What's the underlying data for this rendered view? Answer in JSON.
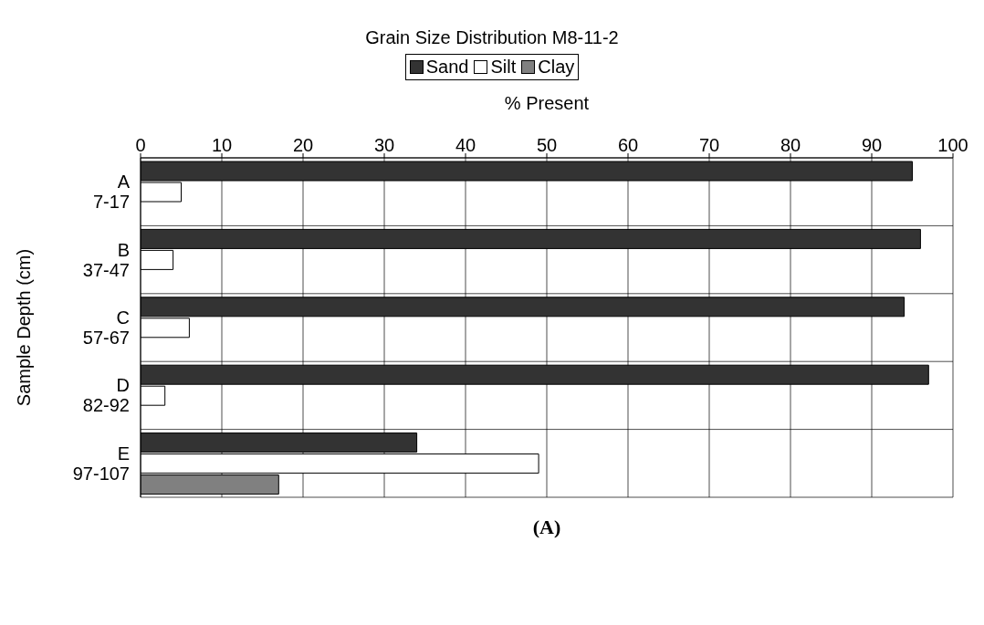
{
  "chart_data": {
    "type": "bar",
    "orientation": "horizontal",
    "title": "Grain Size Distribution M8-11-2",
    "xlabel": "% Present",
    "ylabel": "Sample Depth (cm)",
    "categories": [
      "A\n7-17",
      "B\n37-47",
      "C\n57-67",
      "D\n82-92",
      "E\n97-107"
    ],
    "series": [
      {
        "name": "Sand",
        "color": "#333333",
        "values": [
          95,
          96,
          94,
          97,
          34
        ]
      },
      {
        "name": "Silt",
        "color": "#ffffff",
        "values": [
          5,
          4,
          6,
          3,
          49
        ]
      },
      {
        "name": "Clay",
        "color": "#808080",
        "values": [
          0,
          0,
          0,
          0,
          17
        ]
      }
    ],
    "xlim": [
      0,
      100
    ],
    "xticks": [
      0,
      10,
      20,
      30,
      40,
      50,
      60,
      70,
      80,
      90,
      100
    ],
    "grid": true,
    "legend": "top",
    "annotations": [
      "(A)"
    ]
  }
}
